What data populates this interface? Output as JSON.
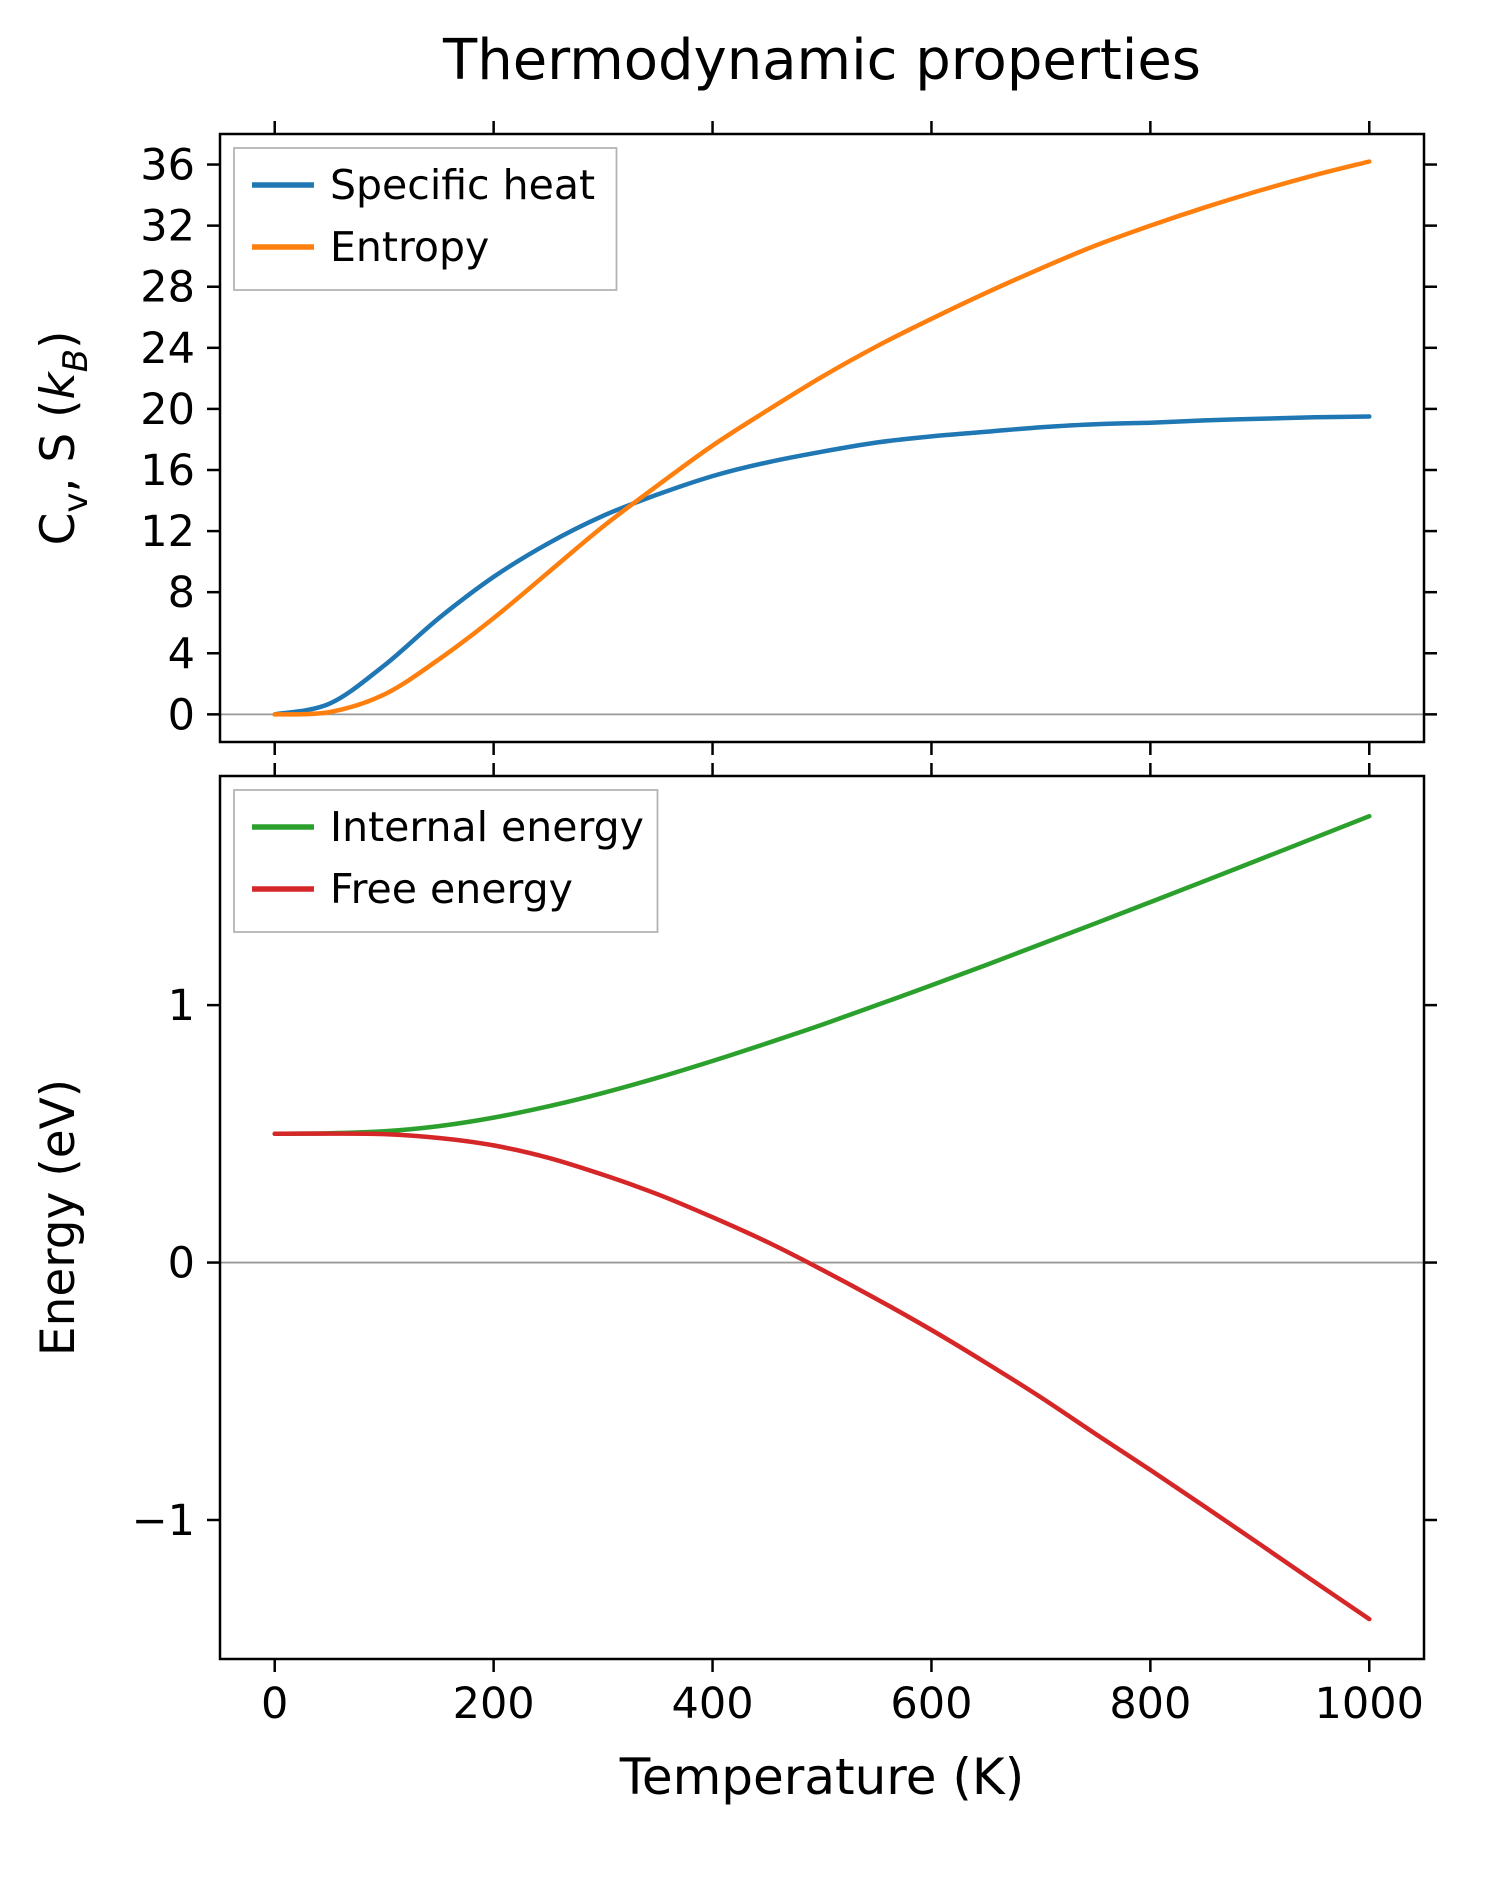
{
  "figure": {
    "background": "#ffffff",
    "axis_color": "#000000",
    "zero_line_color": "#999999"
  },
  "chart_data": [
    {
      "type": "line",
      "title": "Thermodynamic properties",
      "ylabel": "Cv, S (kB)",
      "ylabel_parts": [
        [
          "C",
          ""
        ],
        [
          "v",
          "sub"
        ],
        [
          ", S (",
          ""
        ],
        [
          "k",
          "italic"
        ],
        [
          "B",
          "sub italic"
        ],
        [
          ")",
          ""
        ]
      ],
      "xlim": [
        -50,
        1050
      ],
      "ylim": [
        -1.81,
        38.0
      ],
      "xticks": [
        0,
        200,
        400,
        600,
        800,
        1000
      ],
      "yticks": [
        0,
        4,
        8,
        12,
        16,
        20,
        24,
        28,
        32,
        36
      ],
      "show_x_tick_labels": false,
      "zero_line": true,
      "grid": false,
      "legend_loc": "upper left",
      "legend": [
        "Specific heat",
        "Entropy"
      ],
      "x": [
        0,
        50,
        100,
        150,
        200,
        250,
        300,
        350,
        400,
        450,
        500,
        550,
        600,
        650,
        700,
        750,
        800,
        850,
        900,
        950,
        1000
      ],
      "series": [
        {
          "name": "Specific heat",
          "color": "#1f77b4",
          "values": [
            0,
            0.7,
            3.2,
            6.3,
            9.0,
            11.2,
            13.0,
            14.4,
            15.6,
            16.5,
            17.2,
            17.8,
            18.2,
            18.5,
            18.8,
            19.0,
            19.1,
            19.25,
            19.35,
            19.45,
            19.5
          ]
        },
        {
          "name": "Entropy",
          "color": "#ff7f0e",
          "values": [
            0,
            0.15,
            1.3,
            3.6,
            6.3,
            9.3,
            12.3,
            15.0,
            17.6,
            19.9,
            22.1,
            24.1,
            25.9,
            27.6,
            29.2,
            30.7,
            32.0,
            33.2,
            34.3,
            35.3,
            36.2
          ]
        }
      ]
    },
    {
      "type": "line",
      "xlabel": "Temperature (K)",
      "ylabel": "Energy (eV)",
      "ylabel_parts": [
        [
          "Energy (eV)",
          ""
        ]
      ],
      "xlim": [
        -50,
        1050
      ],
      "ylim": [
        -1.54,
        1.89
      ],
      "xticks": [
        0,
        200,
        400,
        600,
        800,
        1000
      ],
      "yticks": [
        -1,
        0,
        1
      ],
      "show_x_tick_labels": true,
      "zero_line": true,
      "grid": false,
      "legend_loc": "upper left",
      "legend": [
        "Internal energy",
        "Free energy"
      ],
      "x": [
        0,
        50,
        100,
        150,
        200,
        250,
        300,
        350,
        400,
        450,
        500,
        550,
        600,
        650,
        700,
        750,
        800,
        850,
        900,
        950,
        1000
      ],
      "series": [
        {
          "name": "Internal energy",
          "color": "#2ca02c",
          "values": [
            0.5,
            0.502,
            0.51,
            0.53,
            0.563,
            0.607,
            0.659,
            0.718,
            0.783,
            0.852,
            0.924,
            1.0,
            1.077,
            1.156,
            1.237,
            1.318,
            1.4,
            1.483,
            1.566,
            1.65,
            1.734
          ]
        },
        {
          "name": "Free energy",
          "color": "#d62728",
          "values": [
            0.5,
            0.501,
            0.499,
            0.484,
            0.455,
            0.407,
            0.341,
            0.265,
            0.176,
            0.08,
            -0.028,
            -0.142,
            -0.262,
            -0.39,
            -0.524,
            -0.666,
            -0.806,
            -0.949,
            -1.094,
            -1.24,
            -1.385
          ]
        }
      ]
    }
  ]
}
